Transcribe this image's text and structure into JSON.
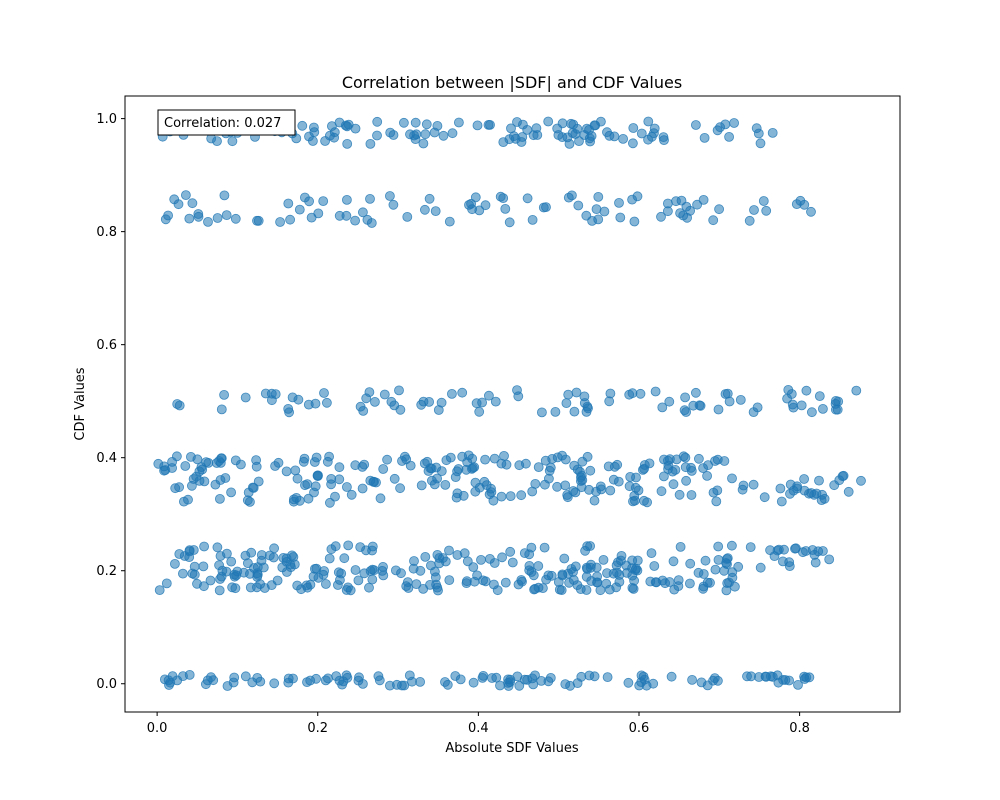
{
  "chart_data": {
    "type": "scatter",
    "title": "Correlation between |SDF| and CDF Values",
    "xlabel": "Absolute SDF Values",
    "ylabel": "CDF Values",
    "xlim": [
      -0.04,
      0.925
    ],
    "ylim": [
      -0.05,
      1.04
    ],
    "x_ticks": [
      0.0,
      0.2,
      0.4,
      0.6,
      0.8
    ],
    "y_ticks": [
      0.0,
      0.2,
      0.4,
      0.6,
      0.8,
      1.0
    ],
    "x_tick_labels": [
      "0.0",
      "0.2",
      "0.4",
      "0.6",
      "0.8"
    ],
    "y_tick_labels": [
      "0.0",
      "0.2",
      "0.4",
      "0.6",
      "0.8",
      "1.0"
    ],
    "annotation": "Correlation: 0.027",
    "point_color": "#1f77b4",
    "point_alpha": 0.55,
    "grid": false,
    "bands": [
      {
        "center": 0.975,
        "spread": 0.02,
        "count": 120,
        "xmin": 0.0,
        "xmax": 0.77
      },
      {
        "center": 0.84,
        "spread": 0.025,
        "count": 90,
        "xmin": 0.0,
        "xmax": 0.82
      },
      {
        "center": 0.5,
        "spread": 0.02,
        "count": 90,
        "xmin": 0.02,
        "xmax": 0.88
      },
      {
        "center": 0.39,
        "spread": 0.015,
        "count": 110,
        "xmin": 0.0,
        "xmax": 0.72
      },
      {
        "center": 0.345,
        "spread": 0.025,
        "count": 140,
        "xmin": 0.02,
        "xmax": 0.88
      },
      {
        "center": 0.225,
        "spread": 0.02,
        "count": 120,
        "xmin": 0.01,
        "xmax": 0.85
      },
      {
        "center": 0.185,
        "spread": 0.02,
        "count": 160,
        "xmin": 0.0,
        "xmax": 0.72
      },
      {
        "center": 0.006,
        "spread": 0.01,
        "count": 110,
        "xmin": 0.0,
        "xmax": 0.83
      }
    ]
  }
}
